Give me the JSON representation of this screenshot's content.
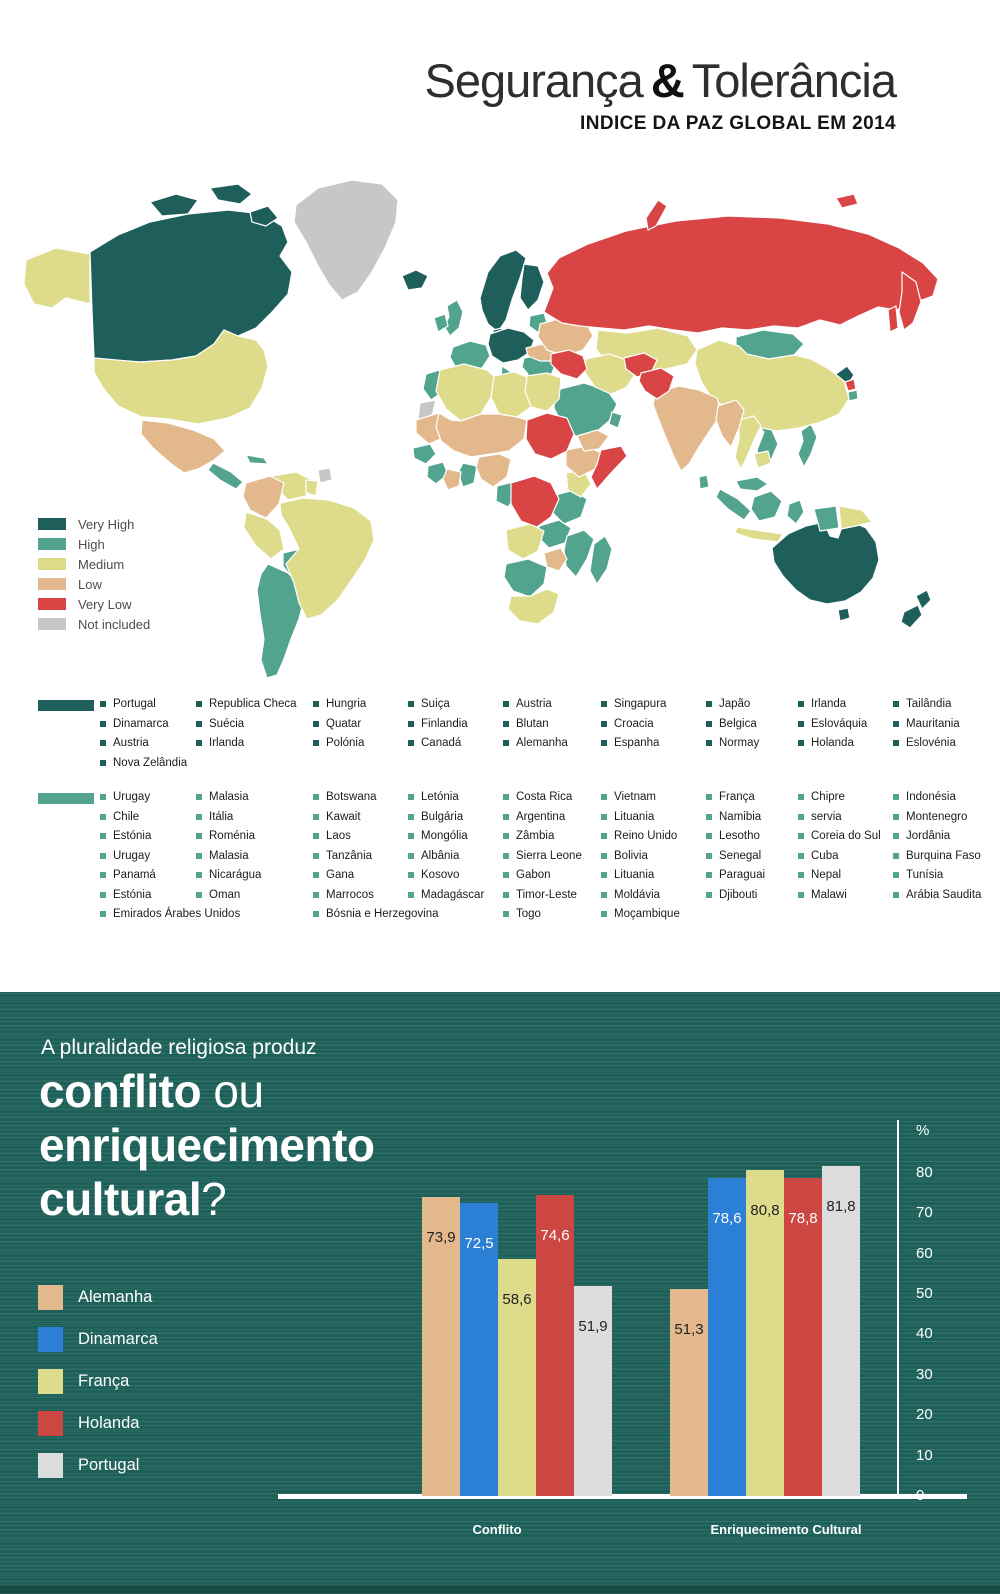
{
  "header": {
    "title_part1": "Segurança",
    "title_amp": "&",
    "title_part2": "Tolerância",
    "subtitle": "INDICE DA PAZ GLOBAL EM 2014"
  },
  "colors": {
    "very_high": "#1f5f5b",
    "high": "#52a48e",
    "medium": "#dedc8b",
    "low": "#e3b88c",
    "very_low": "#d94545",
    "not_included": "#c7c7c7",
    "section_background": "#1d6059"
  },
  "map_legend": {
    "items": [
      {
        "label": "Very High",
        "color": "#1f5f5b"
      },
      {
        "label": "High",
        "color": "#52a48e"
      },
      {
        "label": "Medium",
        "color": "#dedc8b"
      },
      {
        "label": "Low",
        "color": "#e3b88c"
      },
      {
        "label": "Very Low",
        "color": "#d94545"
      },
      {
        "label": "Not included",
        "color": "#c7c7c7"
      }
    ]
  },
  "country_groups": [
    {
      "level": "Very High",
      "color": "#1f5f5b",
      "columns": [
        [
          "Portugal",
          "Dinamarca",
          "Austria",
          "Nova Zelândia"
        ],
        [
          "Republica Checa",
          "Suécia",
          "Irlanda"
        ],
        [
          "Hungria",
          "Quatar",
          "Polónia"
        ],
        [
          "Suiça",
          "Finlandia",
          "Canadá"
        ],
        [
          "Austria",
          "Blutan",
          "Alemanha"
        ],
        [
          "Singapura",
          "Croacia",
          "Espanha"
        ],
        [
          "Japão",
          "Belgica",
          "Normay"
        ],
        [
          "Irlanda",
          "Eslováquia",
          "Holanda"
        ],
        [
          "Tailândia",
          "Mauritania",
          "Eslovénia"
        ]
      ]
    },
    {
      "level": "High",
      "color": "#52a48e",
      "columns": [
        [
          "Urugay",
          "Chile",
          "Estónia",
          "Urugay",
          "Panamá",
          "Estónia",
          "Emirados Árabes Unidos"
        ],
        [
          "Malasia",
          "Itália",
          "Roménia",
          "Malasia",
          "Nicarágua",
          "Oman"
        ],
        [
          "Botswana",
          "Kawait",
          "Laos",
          "Tanzânia",
          "Gana",
          "Marrocos",
          "Bósnia e Herzegovina"
        ],
        [
          "Letónia",
          "Bulgária",
          "Mongólia",
          "Albânia",
          "Kosovo",
          "Madagáscar"
        ],
        [
          "Costa Rica",
          "Argentina",
          "Zâmbia",
          "Sierra Leone",
          "Gabon",
          "Timor-Leste",
          "Togo"
        ],
        [
          "Vietnam",
          "Lituania",
          "Reino Unido",
          "Bolivia",
          "Lituania",
          "Moldávia",
          "Moçambique"
        ],
        [
          "França",
          "Namibia",
          "Lesotho",
          "Senegal",
          "Paraguai",
          "Djibouti"
        ],
        [
          "Chipre",
          "servia",
          "Coreia do Sul",
          "Cuba",
          "Nepal",
          "Malawi"
        ],
        [
          "Indonésia",
          "Montenegro",
          "Jordânia",
          "Burquina Faso",
          "Tunísia",
          "Arábia Saudita"
        ]
      ]
    }
  ],
  "section": {
    "intro": "A pluralidade religiosa produz",
    "q_line1_bold": "conflito",
    "q_line1_light": " ou",
    "q_line2_bold": "enriquecimento",
    "q_line3_bold": "cultural",
    "q_line3_light": "?"
  },
  "chart_data": {
    "type": "bar",
    "title": "A pluralidade religiosa produz conflito ou enriquecimento cultural?",
    "categories": [
      "Conflito",
      "Enriquecimento Cultural"
    ],
    "series": [
      {
        "name": "Alemanha",
        "color": "#e3b88c",
        "label_color": "#222222",
        "values": [
          73.9,
          51.3
        ],
        "labels": [
          "73,9",
          "51,3"
        ]
      },
      {
        "name": "Dinamarca",
        "color": "#2b7fd4",
        "label_color": "#ffffff",
        "values": [
          72.5,
          78.6
        ],
        "labels": [
          "72,5",
          "78,6"
        ]
      },
      {
        "name": "França",
        "color": "#dedc8b",
        "label_color": "#222222",
        "values": [
          58.6,
          80.8
        ],
        "labels": [
          "58,6",
          "80,8"
        ]
      },
      {
        "name": "Holanda",
        "color": "#cd4742",
        "label_color": "#ffffff",
        "values": [
          74.6,
          78.8
        ],
        "labels": [
          "74,6",
          "78,8"
        ]
      },
      {
        "name": "Portugal",
        "color": "#dcdcdc",
        "label_color": "#222222",
        "values": [
          51.9,
          81.8
        ],
        "labels": [
          "51,9",
          "81,8"
        ]
      }
    ],
    "ylabel": "%",
    "yticks": [
      80,
      70,
      60,
      50,
      40,
      30,
      20,
      10,
      0
    ],
    "ylim": [
      0,
      88
    ],
    "grid": false,
    "legend_position": "left"
  }
}
